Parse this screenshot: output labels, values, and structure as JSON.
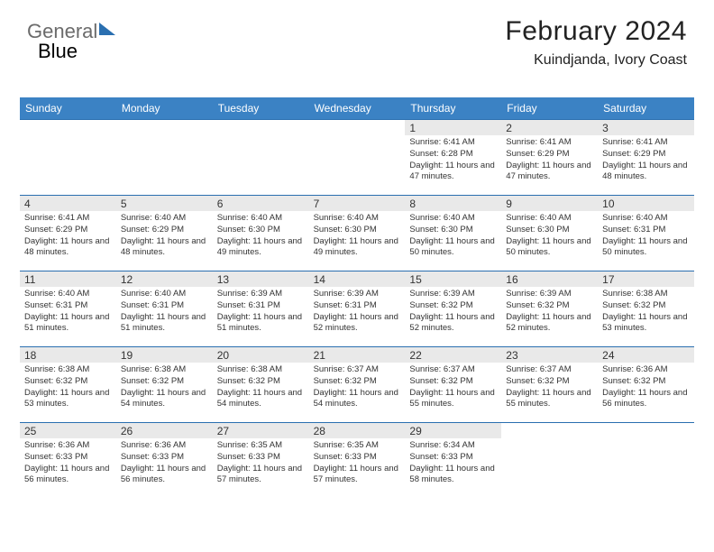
{
  "logo": {
    "text1": "General",
    "text2": "Blue"
  },
  "header": {
    "month": "February 2024",
    "location": "Kuindjanda, Ivory Coast"
  },
  "styling": {
    "header_bg": "#3b82c4",
    "border_color": "#2a6fb0",
    "daynum_bg": "#e9e9e9",
    "page_bg": "#ffffff",
    "text_color": "#333333",
    "month_fontsize": 30,
    "location_fontsize": 16,
    "weekday_fontsize": 12,
    "detail_fontsize": 9.5,
    "columns": 7
  },
  "weekdays": [
    "Sunday",
    "Monday",
    "Tuesday",
    "Wednesday",
    "Thursday",
    "Friday",
    "Saturday"
  ],
  "cells": [
    {
      "day": "",
      "sunrise": "",
      "sunset": "",
      "daylight": ""
    },
    {
      "day": "",
      "sunrise": "",
      "sunset": "",
      "daylight": ""
    },
    {
      "day": "",
      "sunrise": "",
      "sunset": "",
      "daylight": ""
    },
    {
      "day": "",
      "sunrise": "",
      "sunset": "",
      "daylight": ""
    },
    {
      "day": "1",
      "sunrise": "Sunrise: 6:41 AM",
      "sunset": "Sunset: 6:28 PM",
      "daylight": "Daylight: 11 hours and 47 minutes."
    },
    {
      "day": "2",
      "sunrise": "Sunrise: 6:41 AM",
      "sunset": "Sunset: 6:29 PM",
      "daylight": "Daylight: 11 hours and 47 minutes."
    },
    {
      "day": "3",
      "sunrise": "Sunrise: 6:41 AM",
      "sunset": "Sunset: 6:29 PM",
      "daylight": "Daylight: 11 hours and 48 minutes."
    },
    {
      "day": "4",
      "sunrise": "Sunrise: 6:41 AM",
      "sunset": "Sunset: 6:29 PM",
      "daylight": "Daylight: 11 hours and 48 minutes."
    },
    {
      "day": "5",
      "sunrise": "Sunrise: 6:40 AM",
      "sunset": "Sunset: 6:29 PM",
      "daylight": "Daylight: 11 hours and 48 minutes."
    },
    {
      "day": "6",
      "sunrise": "Sunrise: 6:40 AM",
      "sunset": "Sunset: 6:30 PM",
      "daylight": "Daylight: 11 hours and 49 minutes."
    },
    {
      "day": "7",
      "sunrise": "Sunrise: 6:40 AM",
      "sunset": "Sunset: 6:30 PM",
      "daylight": "Daylight: 11 hours and 49 minutes."
    },
    {
      "day": "8",
      "sunrise": "Sunrise: 6:40 AM",
      "sunset": "Sunset: 6:30 PM",
      "daylight": "Daylight: 11 hours and 50 minutes."
    },
    {
      "day": "9",
      "sunrise": "Sunrise: 6:40 AM",
      "sunset": "Sunset: 6:30 PM",
      "daylight": "Daylight: 11 hours and 50 minutes."
    },
    {
      "day": "10",
      "sunrise": "Sunrise: 6:40 AM",
      "sunset": "Sunset: 6:31 PM",
      "daylight": "Daylight: 11 hours and 50 minutes."
    },
    {
      "day": "11",
      "sunrise": "Sunrise: 6:40 AM",
      "sunset": "Sunset: 6:31 PM",
      "daylight": "Daylight: 11 hours and 51 minutes."
    },
    {
      "day": "12",
      "sunrise": "Sunrise: 6:40 AM",
      "sunset": "Sunset: 6:31 PM",
      "daylight": "Daylight: 11 hours and 51 minutes."
    },
    {
      "day": "13",
      "sunrise": "Sunrise: 6:39 AM",
      "sunset": "Sunset: 6:31 PM",
      "daylight": "Daylight: 11 hours and 51 minutes."
    },
    {
      "day": "14",
      "sunrise": "Sunrise: 6:39 AM",
      "sunset": "Sunset: 6:31 PM",
      "daylight": "Daylight: 11 hours and 52 minutes."
    },
    {
      "day": "15",
      "sunrise": "Sunrise: 6:39 AM",
      "sunset": "Sunset: 6:32 PM",
      "daylight": "Daylight: 11 hours and 52 minutes."
    },
    {
      "day": "16",
      "sunrise": "Sunrise: 6:39 AM",
      "sunset": "Sunset: 6:32 PM",
      "daylight": "Daylight: 11 hours and 52 minutes."
    },
    {
      "day": "17",
      "sunrise": "Sunrise: 6:38 AM",
      "sunset": "Sunset: 6:32 PM",
      "daylight": "Daylight: 11 hours and 53 minutes."
    },
    {
      "day": "18",
      "sunrise": "Sunrise: 6:38 AM",
      "sunset": "Sunset: 6:32 PM",
      "daylight": "Daylight: 11 hours and 53 minutes."
    },
    {
      "day": "19",
      "sunrise": "Sunrise: 6:38 AM",
      "sunset": "Sunset: 6:32 PM",
      "daylight": "Daylight: 11 hours and 54 minutes."
    },
    {
      "day": "20",
      "sunrise": "Sunrise: 6:38 AM",
      "sunset": "Sunset: 6:32 PM",
      "daylight": "Daylight: 11 hours and 54 minutes."
    },
    {
      "day": "21",
      "sunrise": "Sunrise: 6:37 AM",
      "sunset": "Sunset: 6:32 PM",
      "daylight": "Daylight: 11 hours and 54 minutes."
    },
    {
      "day": "22",
      "sunrise": "Sunrise: 6:37 AM",
      "sunset": "Sunset: 6:32 PM",
      "daylight": "Daylight: 11 hours and 55 minutes."
    },
    {
      "day": "23",
      "sunrise": "Sunrise: 6:37 AM",
      "sunset": "Sunset: 6:32 PM",
      "daylight": "Daylight: 11 hours and 55 minutes."
    },
    {
      "day": "24",
      "sunrise": "Sunrise: 6:36 AM",
      "sunset": "Sunset: 6:32 PM",
      "daylight": "Daylight: 11 hours and 56 minutes."
    },
    {
      "day": "25",
      "sunrise": "Sunrise: 6:36 AM",
      "sunset": "Sunset: 6:33 PM",
      "daylight": "Daylight: 11 hours and 56 minutes."
    },
    {
      "day": "26",
      "sunrise": "Sunrise: 6:36 AM",
      "sunset": "Sunset: 6:33 PM",
      "daylight": "Daylight: 11 hours and 56 minutes."
    },
    {
      "day": "27",
      "sunrise": "Sunrise: 6:35 AM",
      "sunset": "Sunset: 6:33 PM",
      "daylight": "Daylight: 11 hours and 57 minutes."
    },
    {
      "day": "28",
      "sunrise": "Sunrise: 6:35 AM",
      "sunset": "Sunset: 6:33 PM",
      "daylight": "Daylight: 11 hours and 57 minutes."
    },
    {
      "day": "29",
      "sunrise": "Sunrise: 6:34 AM",
      "sunset": "Sunset: 6:33 PM",
      "daylight": "Daylight: 11 hours and 58 minutes."
    },
    {
      "day": "",
      "sunrise": "",
      "sunset": "",
      "daylight": ""
    },
    {
      "day": "",
      "sunrise": "",
      "sunset": "",
      "daylight": ""
    }
  ]
}
